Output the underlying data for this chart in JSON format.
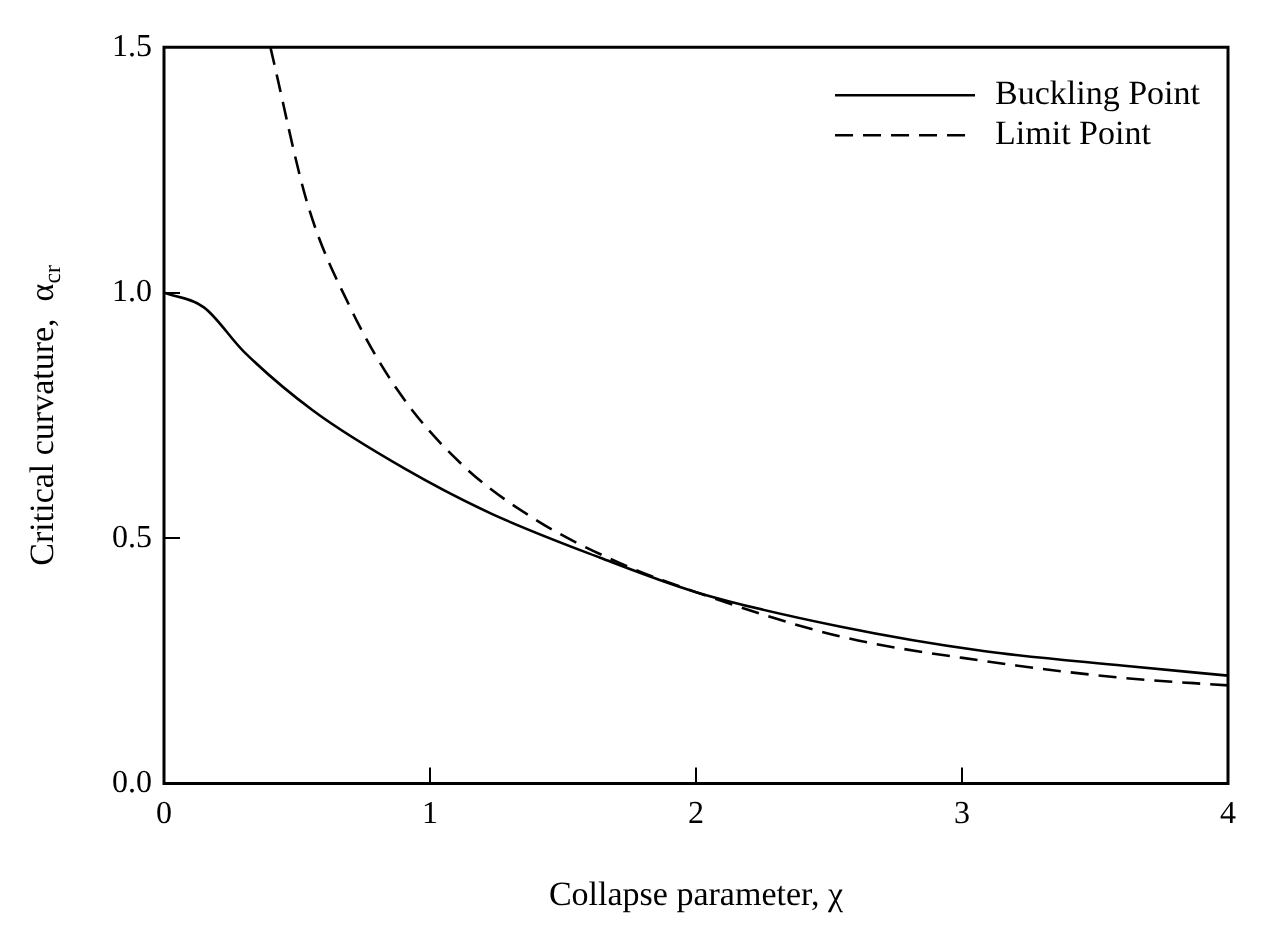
{
  "chart_data": {
    "type": "line",
    "xlabel": "Collapse parameter, χ",
    "ylabel": "Critical curvature,  α$_{cr}$",
    "xlim": [
      0,
      4
    ],
    "xticks": [
      0,
      1,
      2,
      3,
      4
    ],
    "ylim": [
      0,
      1.5
    ],
    "yticks": [
      {
        "value": 0,
        "label": "0.0"
      },
      {
        "value": 0.5,
        "label": "0.5"
      },
      {
        "value": 1,
        "label": "1.0"
      },
      {
        "value": 1.5,
        "label": "1.5"
      }
    ],
    "grid": false,
    "legend": "top right",
    "marker": "none",
    "series": [
      {
        "name": "Buckling Point",
        "color": "#000000",
        "line_style": "solid",
        "x": [
          0,
          0.15,
          0.3,
          0.56,
          0.91,
          1.23,
          1.64,
          2.0,
          2.54,
          3.08,
          3.61,
          4.0
        ],
        "values": [
          1.0,
          0.97,
          0.88,
          0.76,
          0.64,
          0.55,
          0.46,
          0.39,
          0.32,
          0.27,
          0.24,
          0.22
        ]
      },
      {
        "name": "Limit Point",
        "color": "#000000",
        "line_style": "dashed",
        "x": [
          0.4,
          0.54,
          0.7,
          0.88,
          1.12,
          1.39,
          1.71,
          2.0,
          2.54,
          3.08,
          3.61,
          4.0
        ],
        "values": [
          1.5,
          1.18,
          0.97,
          0.8,
          0.65,
          0.54,
          0.45,
          0.39,
          0.3,
          0.25,
          0.215,
          0.2
        ]
      }
    ]
  }
}
